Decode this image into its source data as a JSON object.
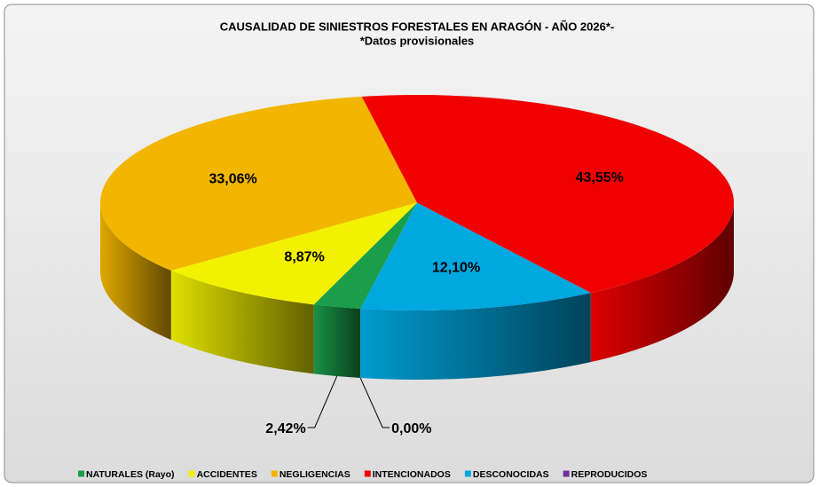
{
  "chart_data": {
    "type": "pie",
    "title": "CAUSALIDAD DE SINIESTROS FORESTALES EN ARAGÓN  - AÑO 2026*-",
    "subtitle": "*Datos provisionales",
    "categories": [
      "NATURALES (Rayo)",
      "ACCIDENTES",
      "NEGLIGENCIAS",
      "INTENCIONADOS",
      "DESCONOCIDAS",
      "REPRODUCIDOS"
    ],
    "values": [
      2.42,
      8.87,
      33.06,
      43.55,
      12.1,
      0.0
    ],
    "value_labels": [
      "2,42%",
      "8,87%",
      "33,06%",
      "43,55%",
      "12,10%",
      "0,00%"
    ],
    "colors": [
      "#1a9e4a",
      "#f2f200",
      "#f2b600",
      "#f00000",
      "#00a8e0",
      "#7030a0"
    ],
    "legend": "bottom"
  }
}
